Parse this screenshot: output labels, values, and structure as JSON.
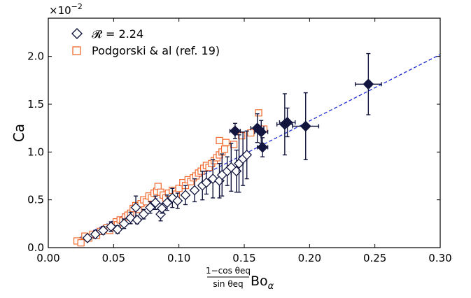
{
  "chart_data": {
    "type": "scatter",
    "title": "",
    "xlabel": "(1−cos θeq / sin θeq) Boα",
    "xlabel_parts": {
      "numerator": "1−cos θeq",
      "denominator": "sin θeq",
      "main": "Bo",
      "subscript": "α"
    },
    "ylabel": "Ca",
    "y_multiplier": "×10−2",
    "y_multiplier_parts": {
      "base": "×10",
      "exponent": "−2"
    },
    "xlim": [
      0.0,
      0.3
    ],
    "ylim": [
      0.0,
      2.4
    ],
    "x_ticks": [
      "0.00",
      "0.05",
      "0.10",
      "0.15",
      "0.20",
      "0.25",
      "0.30"
    ],
    "y_ticks": [
      "0.0",
      "0.5",
      "1.0",
      "1.5",
      "2.0"
    ],
    "grid": false,
    "legend_position": "top-left",
    "series": [
      {
        "name": "𝓡 = 2.24",
        "marker": "diamond",
        "color": "#12163f",
        "points": [
          {
            "x": 0.03,
            "y": 0.1,
            "filled": false,
            "yerr": 0.03
          },
          {
            "x": 0.036,
            "y": 0.14,
            "filled": false,
            "yerr": 0.04
          },
          {
            "x": 0.042,
            "y": 0.18,
            "filled": false,
            "yerr": 0.04
          },
          {
            "x": 0.048,
            "y": 0.22,
            "filled": false,
            "yerr": 0.05
          },
          {
            "x": 0.053,
            "y": 0.19,
            "filled": false,
            "yerr": 0.04
          },
          {
            "x": 0.058,
            "y": 0.25,
            "filled": false,
            "yerr": 0.05
          },
          {
            "x": 0.063,
            "y": 0.31,
            "filled": false,
            "yerr": 0.06
          },
          {
            "x": 0.067,
            "y": 0.42,
            "filled": false,
            "yerr": 0.12
          },
          {
            "x": 0.068,
            "y": 0.29,
            "filled": false,
            "yerr": 0.04
          },
          {
            "x": 0.073,
            "y": 0.35,
            "filled": false,
            "yerr": 0.05
          },
          {
            "x": 0.078,
            "y": 0.42,
            "filled": false,
            "yerr": 0.06
          },
          {
            "x": 0.082,
            "y": 0.47,
            "filled": false,
            "yerr": 0.07
          },
          {
            "x": 0.086,
            "y": 0.35,
            "filled": false,
            "yerr": 0.07
          },
          {
            "x": 0.087,
            "y": 0.41,
            "filled": false,
            "yerr": 0.05
          },
          {
            "x": 0.091,
            "y": 0.47,
            "filled": false,
            "yerr": 0.08
          },
          {
            "x": 0.095,
            "y": 0.52,
            "filled": false,
            "yerr": 0.1
          },
          {
            "x": 0.099,
            "y": 0.49,
            "filled": false,
            "yerr": 0.08
          },
          {
            "x": 0.105,
            "y": 0.55,
            "filled": false,
            "yerr": 0.1
          },
          {
            "x": 0.112,
            "y": 0.6,
            "filled": false,
            "yerr": 0.12
          },
          {
            "x": 0.118,
            "y": 0.65,
            "filled": false,
            "yerr": 0.15
          },
          {
            "x": 0.121,
            "y": 0.68,
            "filled": false,
            "yerr": 0.12
          },
          {
            "x": 0.126,
            "y": 0.72,
            "filled": false,
            "yerr": 0.2
          },
          {
            "x": 0.131,
            "y": 0.7,
            "filled": false,
            "yerr": 0.18
          },
          {
            "x": 0.133,
            "y": 0.76,
            "filled": false,
            "yerr": 0.22
          },
          {
            "x": 0.137,
            "y": 0.8,
            "filled": false,
            "yerr": 0.15
          },
          {
            "x": 0.14,
            "y": 0.84,
            "filled": false,
            "yerr": 0.25
          },
          {
            "x": 0.144,
            "y": 0.8,
            "filled": false,
            "yerr": 0.22
          },
          {
            "x": 0.146,
            "y": 0.88,
            "filled": false,
            "yerr": 0.3
          },
          {
            "x": 0.149,
            "y": 0.93,
            "filled": false,
            "yerr": 0.28
          },
          {
            "x": 0.152,
            "y": 0.97,
            "filled": false,
            "yerr": 0.25
          },
          {
            "x": 0.143,
            "y": 1.22,
            "filled": true,
            "yerr": 0.08,
            "xerr": 0.004
          },
          {
            "x": 0.16,
            "y": 1.25,
            "filled": true,
            "yerr": 0.15,
            "xerr": 0.005
          },
          {
            "x": 0.163,
            "y": 1.21,
            "filled": true,
            "yerr": 0.12,
            "xerr": 0.005
          },
          {
            "x": 0.164,
            "y": 1.05,
            "filled": true,
            "yerr": 0.1,
            "xerr": 0.004
          },
          {
            "x": 0.181,
            "y": 1.29,
            "filled": true,
            "yerr": 0.32,
            "xerr": 0.006
          },
          {
            "x": 0.183,
            "y": 1.31,
            "filled": true,
            "yerr": 0.15,
            "xerr": 0.006
          },
          {
            "x": 0.197,
            "y": 1.27,
            "filled": true,
            "yerr": 0.35,
            "xerr": 0.01
          },
          {
            "x": 0.245,
            "y": 1.71,
            "filled": true,
            "yerr": 0.32,
            "xerr": 0.01
          }
        ]
      },
      {
        "name": "Podgorski & al (ref. 19)",
        "marker": "square",
        "color": "#f26a2e",
        "points": [
          {
            "x": 0.022,
            "y": 0.07
          },
          {
            "x": 0.025,
            "y": 0.05
          },
          {
            "x": 0.028,
            "y": 0.12
          },
          {
            "x": 0.031,
            "y": 0.1
          },
          {
            "x": 0.034,
            "y": 0.14
          },
          {
            "x": 0.037,
            "y": 0.13
          },
          {
            "x": 0.04,
            "y": 0.17
          },
          {
            "x": 0.043,
            "y": 0.19
          },
          {
            "x": 0.045,
            "y": 0.21
          },
          {
            "x": 0.047,
            "y": 0.18
          },
          {
            "x": 0.049,
            "y": 0.22
          },
          {
            "x": 0.052,
            "y": 0.27
          },
          {
            "x": 0.053,
            "y": 0.24
          },
          {
            "x": 0.055,
            "y": 0.29
          },
          {
            "x": 0.057,
            "y": 0.28
          },
          {
            "x": 0.059,
            "y": 0.32
          },
          {
            "x": 0.061,
            "y": 0.34
          },
          {
            "x": 0.063,
            "y": 0.36
          },
          {
            "x": 0.065,
            "y": 0.41
          },
          {
            "x": 0.067,
            "y": 0.44
          },
          {
            "x": 0.069,
            "y": 0.4
          },
          {
            "x": 0.071,
            "y": 0.46
          },
          {
            "x": 0.073,
            "y": 0.5
          },
          {
            "x": 0.075,
            "y": 0.48
          },
          {
            "x": 0.077,
            "y": 0.54
          },
          {
            "x": 0.079,
            "y": 0.52
          },
          {
            "x": 0.081,
            "y": 0.57
          },
          {
            "x": 0.083,
            "y": 0.59
          },
          {
            "x": 0.084,
            "y": 0.64
          },
          {
            "x": 0.086,
            "y": 0.58
          },
          {
            "x": 0.088,
            "y": 0.55
          },
          {
            "x": 0.09,
            "y": 0.52
          },
          {
            "x": 0.092,
            "y": 0.57
          },
          {
            "x": 0.095,
            "y": 0.6
          },
          {
            "x": 0.098,
            "y": 0.56
          },
          {
            "x": 0.1,
            "y": 0.62
          },
          {
            "x": 0.103,
            "y": 0.68
          },
          {
            "x": 0.105,
            "y": 0.65
          },
          {
            "x": 0.107,
            "y": 0.71
          },
          {
            "x": 0.109,
            "y": 0.69
          },
          {
            "x": 0.111,
            "y": 0.73
          },
          {
            "x": 0.113,
            "y": 0.75
          },
          {
            "x": 0.115,
            "y": 0.78
          },
          {
            "x": 0.117,
            "y": 0.8
          },
          {
            "x": 0.119,
            "y": 0.83
          },
          {
            "x": 0.121,
            "y": 0.86
          },
          {
            "x": 0.123,
            "y": 0.84
          },
          {
            "x": 0.125,
            "y": 0.88
          },
          {
            "x": 0.127,
            "y": 0.91
          },
          {
            "x": 0.129,
            "y": 0.94
          },
          {
            "x": 0.131,
            "y": 0.97
          },
          {
            "x": 0.133,
            "y": 1.0
          },
          {
            "x": 0.135,
            "y": 1.03
          },
          {
            "x": 0.131,
            "y": 1.12
          },
          {
            "x": 0.136,
            "y": 1.1
          },
          {
            "x": 0.142,
            "y": 1.08
          },
          {
            "x": 0.148,
            "y": 1.17
          },
          {
            "x": 0.155,
            "y": 1.2
          },
          {
            "x": 0.161,
            "y": 1.41
          },
          {
            "x": 0.165,
            "y": 1.24
          }
        ]
      },
      {
        "name": "",
        "type": "line",
        "style": "dashed",
        "color": "#1f2bd6",
        "points": [
          {
            "x": 0.02,
            "y": 0.075
          },
          {
            "x": 0.3,
            "y": 2.02
          }
        ]
      }
    ]
  }
}
